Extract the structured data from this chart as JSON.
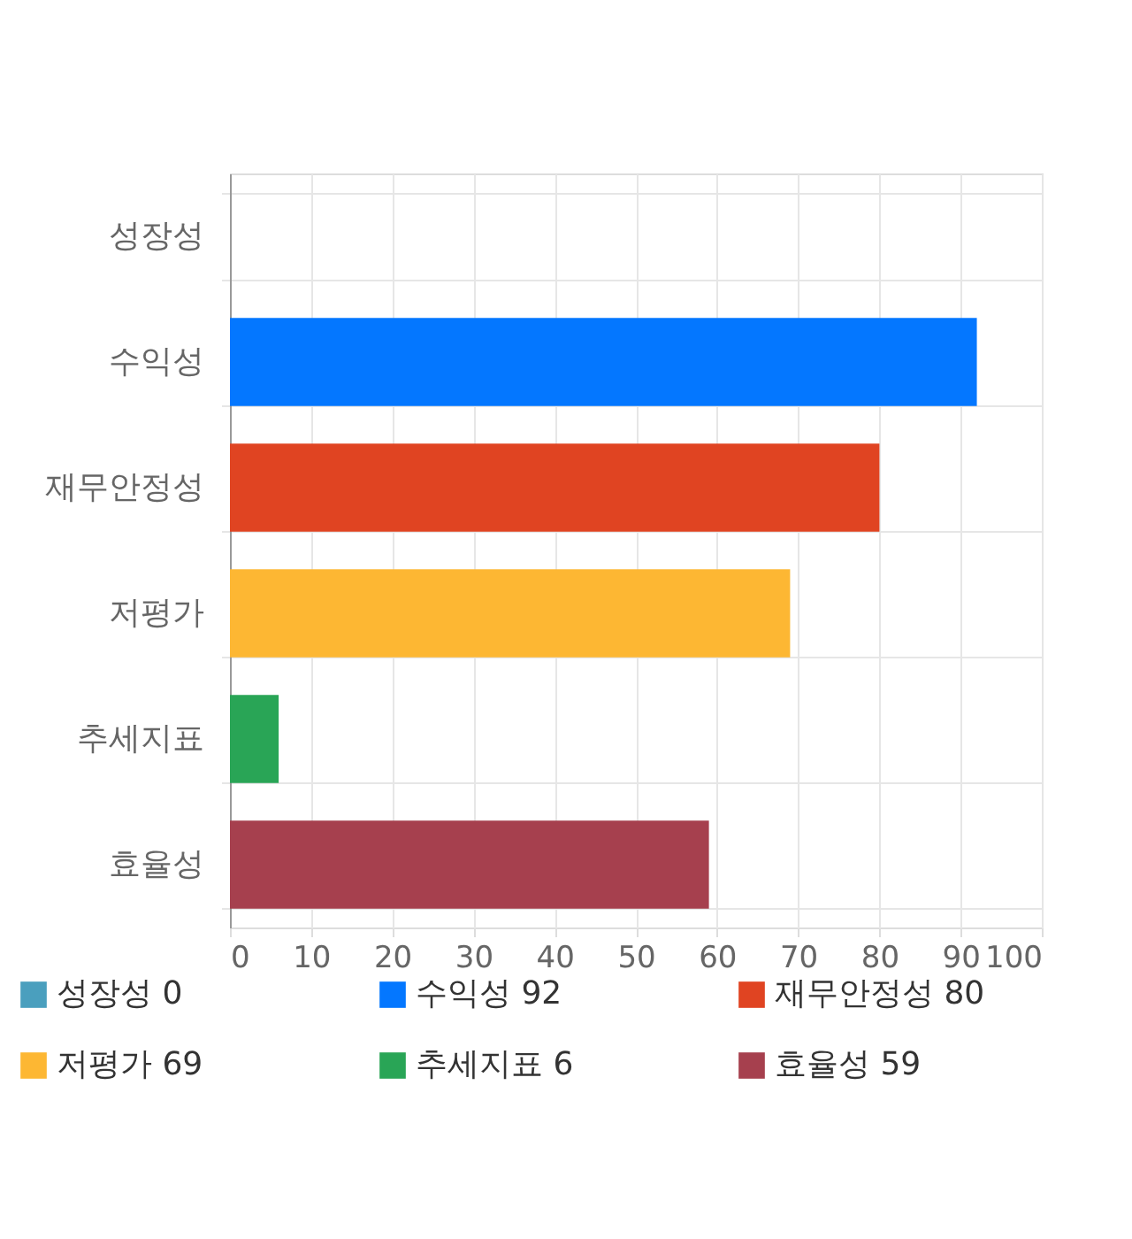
{
  "chart_data": {
    "type": "bar",
    "orientation": "horizontal",
    "categories": [
      "성장성",
      "수익성",
      "재무안정성",
      "저평가",
      "추세지표",
      "효율성"
    ],
    "series": [
      {
        "name": "성장성 0",
        "color": "#4a9fbe",
        "values": [
          0,
          null,
          null,
          null,
          null,
          null
        ]
      },
      {
        "name": "수익성 92",
        "color": "#0477ff",
        "values": [
          null,
          92,
          null,
          null,
          null,
          null
        ]
      },
      {
        "name": "재무안정성 80",
        "color": "#e04422",
        "values": [
          null,
          null,
          80,
          null,
          null,
          null
        ]
      },
      {
        "name": "저평가 69",
        "color": "#fdb733",
        "values": [
          null,
          null,
          null,
          69,
          null,
          null
        ]
      },
      {
        "name": "추세지표 6",
        "color": "#29a556",
        "values": [
          null,
          null,
          null,
          null,
          6,
          null
        ]
      },
      {
        "name": "효율성 59",
        "color": "#a6404e",
        "values": [
          null,
          null,
          null,
          null,
          null,
          59
        ]
      }
    ],
    "xlim": [
      0,
      100
    ],
    "xticks": [
      0,
      10,
      20,
      30,
      40,
      50,
      60,
      70,
      80,
      90,
      100
    ],
    "grid": true,
    "legend": "bottom"
  }
}
